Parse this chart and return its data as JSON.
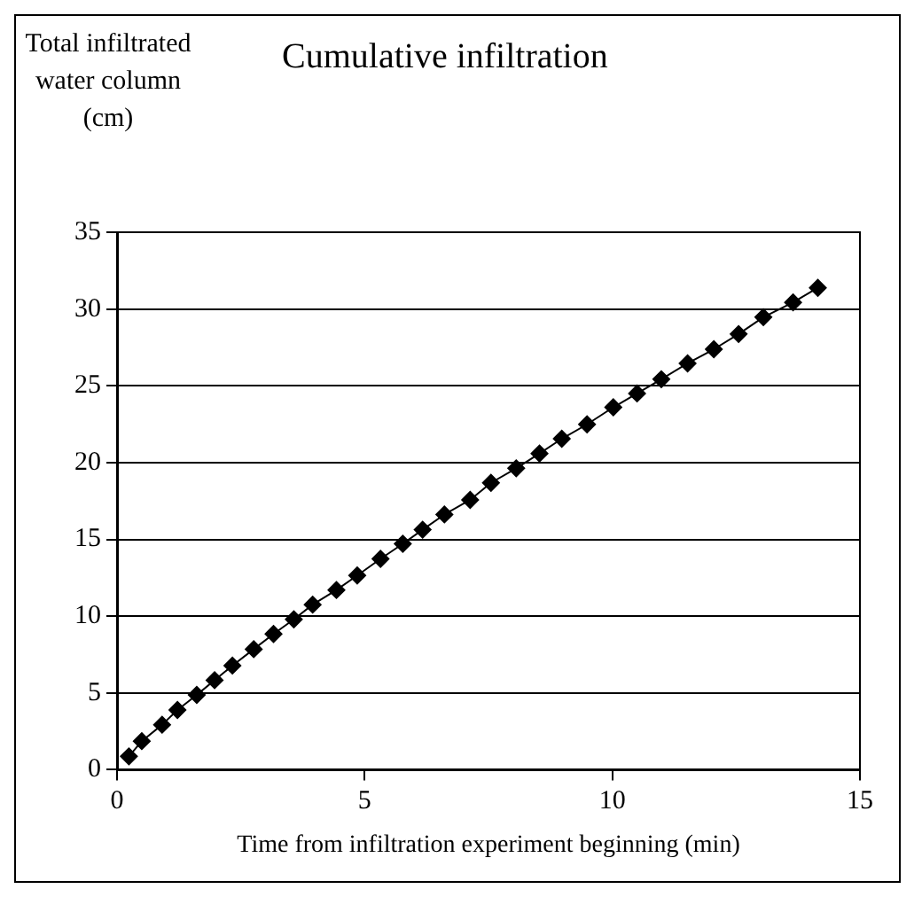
{
  "chart_data": {
    "type": "line",
    "title": "Cumulative infiltration",
    "xlabel": "Time from infiltration experiment beginning (min)",
    "ylabel": "Total infiltrated water column (cm)",
    "x": [
      0.24,
      0.5,
      0.91,
      1.22,
      1.61,
      1.97,
      2.33,
      2.76,
      3.16,
      3.57,
      3.95,
      4.43,
      4.85,
      5.32,
      5.77,
      6.17,
      6.61,
      7.13,
      7.55,
      8.06,
      8.53,
      8.98,
      9.49,
      10.02,
      10.5,
      10.99,
      11.52,
      12.05,
      12.55,
      13.05,
      13.65,
      14.15
    ],
    "series": [
      {
        "color": "#000000",
        "values": [
          0.87,
          1.86,
          2.93,
          3.89,
          4.87,
          5.83,
          6.78,
          7.85,
          8.84,
          9.79,
          10.75,
          11.7,
          12.65,
          13.73,
          14.71,
          15.63,
          16.62,
          17.57,
          18.68,
          19.63,
          20.59,
          21.55,
          22.49,
          23.6,
          24.5,
          25.43,
          26.46,
          27.38,
          28.37,
          29.47,
          30.43,
          31.38
        ]
      }
    ],
    "xlim": [
      0,
      15
    ],
    "xticks": [
      0,
      5,
      10,
      15
    ],
    "ylim": [
      0,
      35
    ],
    "yticks": [
      0,
      5,
      10,
      15,
      20,
      25,
      30,
      35
    ],
    "grid": "y",
    "legend": false,
    "marker": "diamond",
    "line_style": "solid"
  }
}
